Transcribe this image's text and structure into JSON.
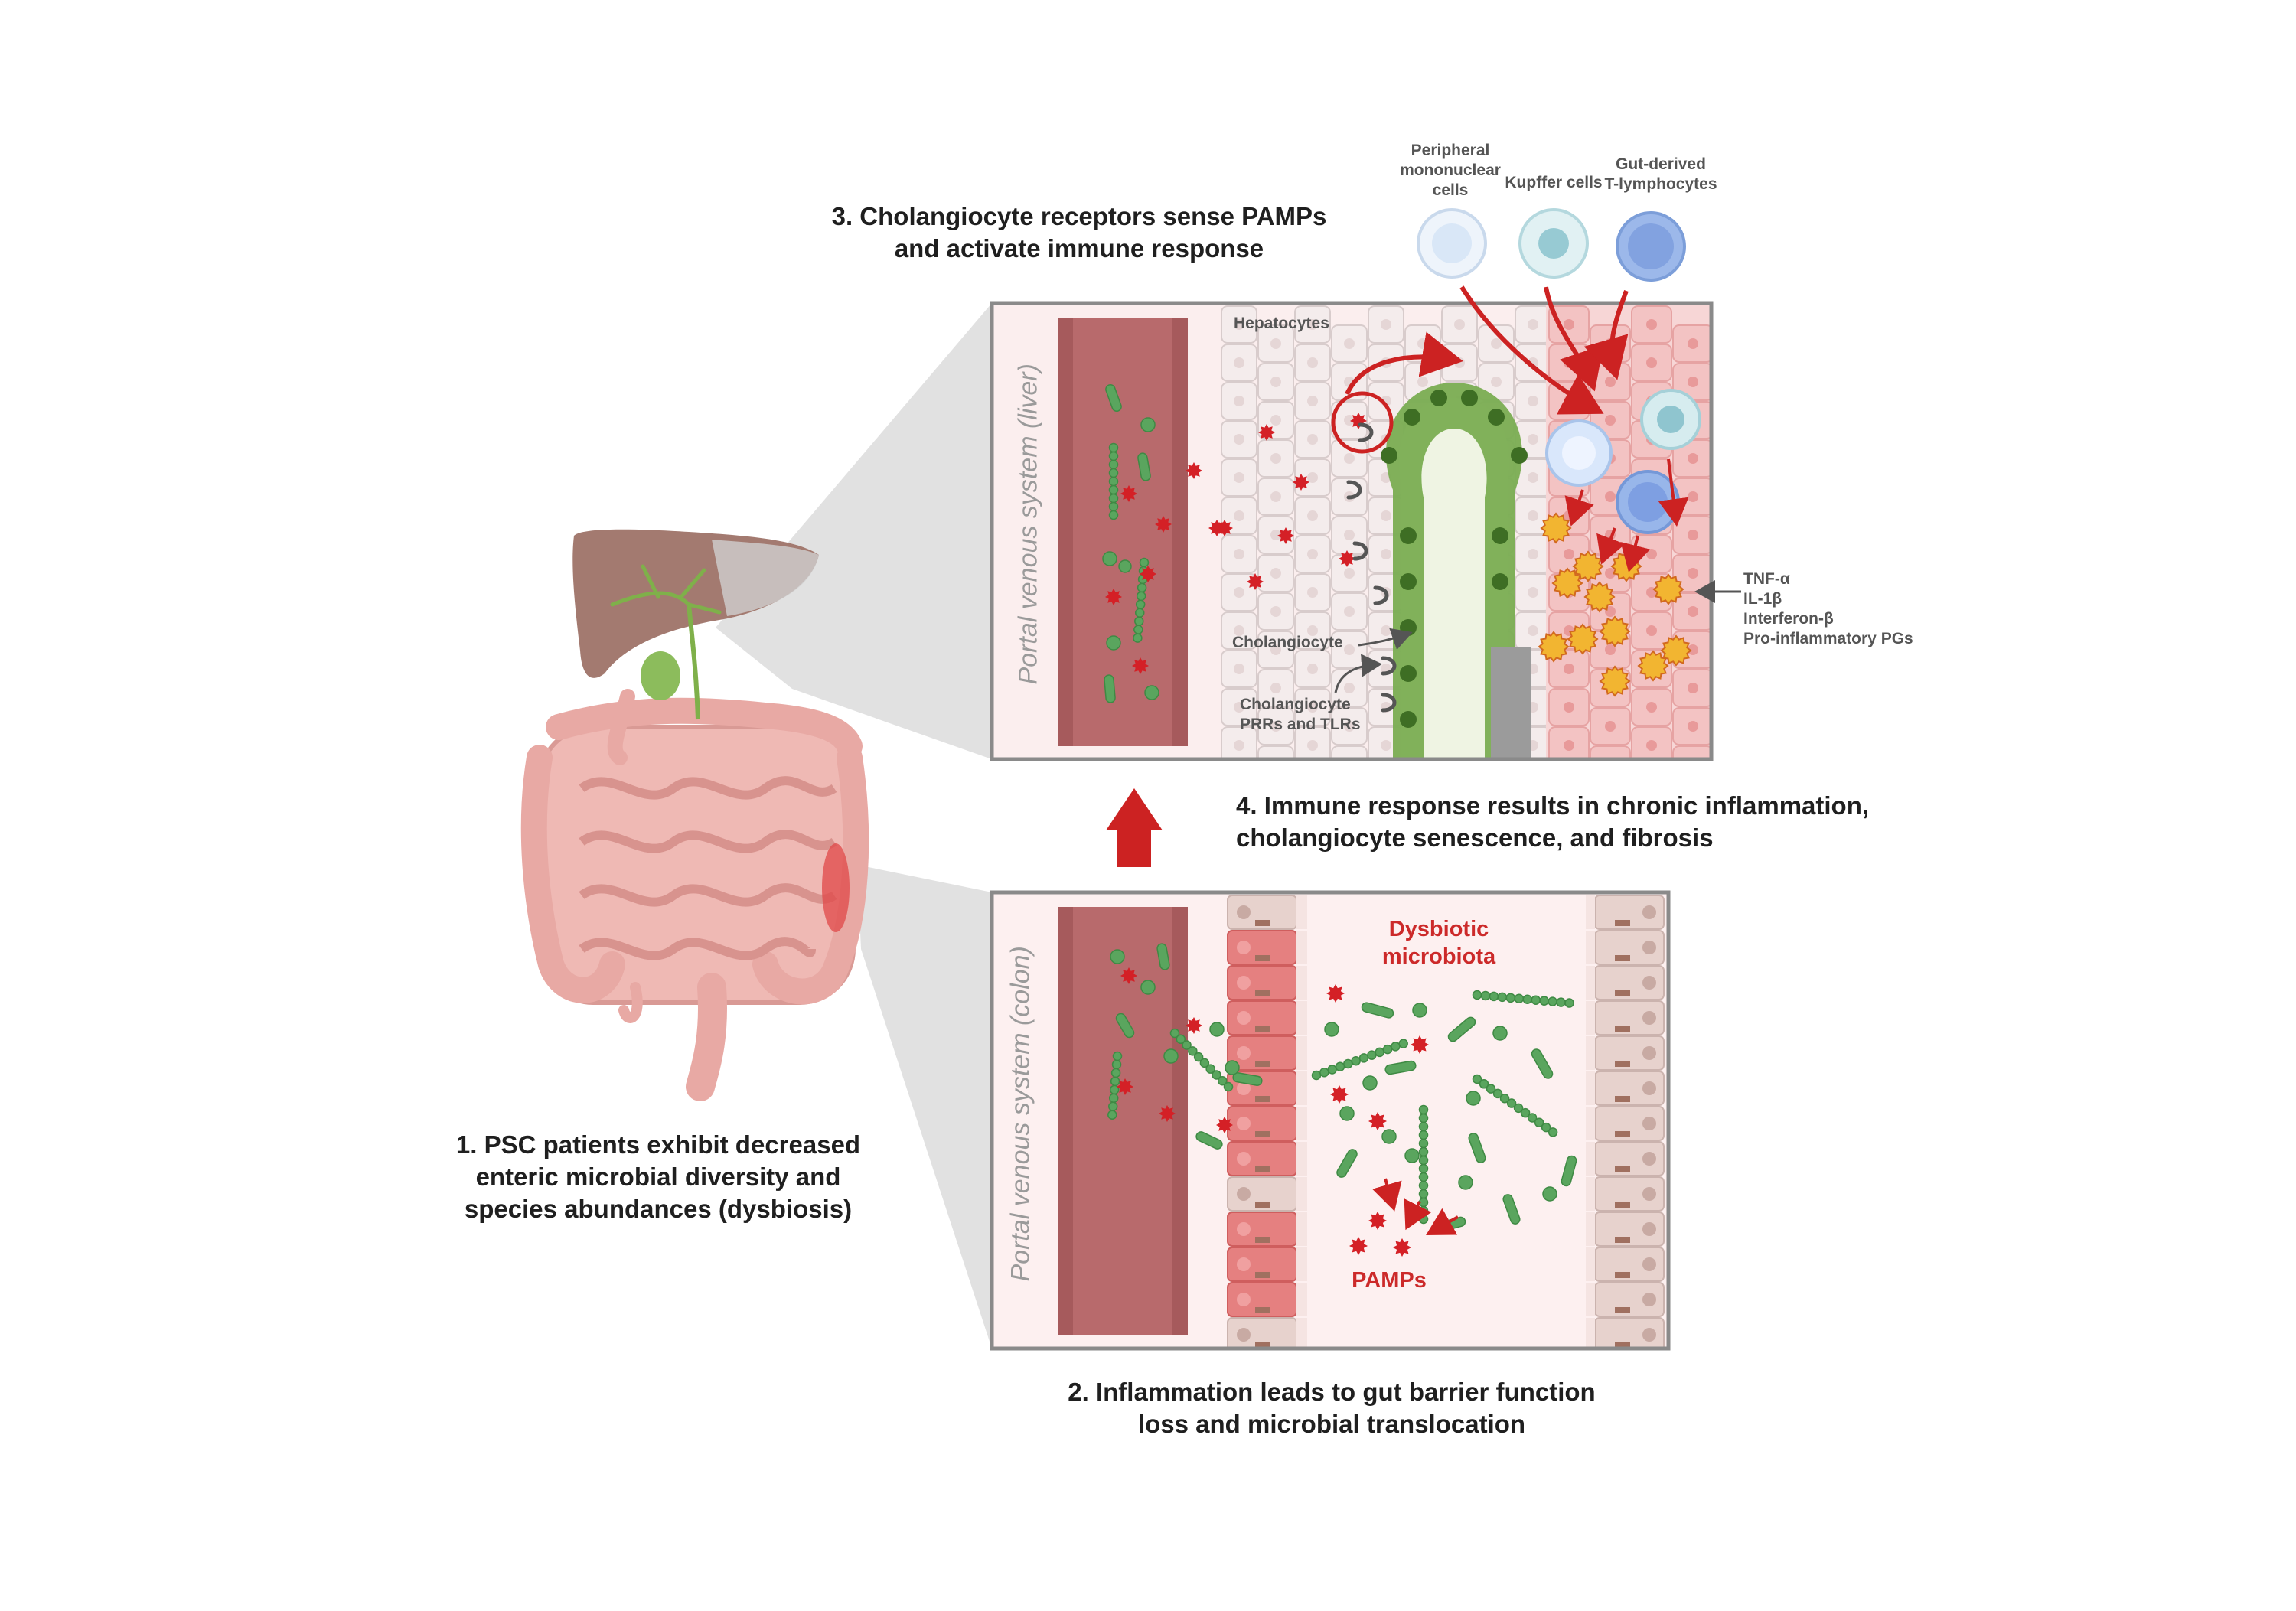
{
  "steps": {
    "s1": [
      "1.  PSC patients exhibit decreased",
      "enteric microbial diversity and",
      "species abundances (dysbiosis)"
    ],
    "s2": [
      "2. Inflammation leads to gut barrier function",
      "loss and microbial translocation"
    ],
    "s3": [
      "3. Cholangiocyte receptors sense PAMPs",
      "and activate immune response"
    ],
    "s4": [
      "4. Immune response results in chronic inflammation,",
      "cholangiocyte senescence, and fibrosis"
    ]
  },
  "liver_panel": {
    "vessel_label": "Portal venous system (liver)",
    "hepatocytes": "Hepatocytes",
    "cholangiocyte": "Cholangiocyte",
    "receptors": [
      "Cholangiocyte",
      "PRRs and TLRs"
    ],
    "cytokines": [
      "TNF-α",
      "IL-1β",
      "Interferon-β",
      "Pro-inflammatory PGs"
    ]
  },
  "immune_cells": {
    "pbmc": [
      "Peripheral",
      "mononuclear",
      "cells"
    ],
    "kupffer": [
      "Kupffer cells"
    ],
    "tcell": [
      "Gut-derived",
      "T-lymphocytes"
    ]
  },
  "colon_panel": {
    "vessel_label": "Portal venous system (colon)",
    "dysbiotic": [
      "Dysbiotic",
      "microbiota"
    ],
    "pamps": "PAMPs"
  },
  "colors": {
    "blood": "#b86a6c",
    "cholangiocyte_green": "#7aad52",
    "pamp_red": "#d42026",
    "bacteria_green": "#5aa55e",
    "cytokine_yellow": "#f2b531",
    "inflamed_pink": "#f3c3c3",
    "arrow_red": "#cc2222"
  },
  "icons": [
    "liver-icon",
    "gallbladder-icon",
    "intestine-icon",
    "up-arrow-icon",
    "bacterium-icon",
    "pamp-icon",
    "immune-cell-icon",
    "cytokine-icon",
    "receptor-icon"
  ]
}
